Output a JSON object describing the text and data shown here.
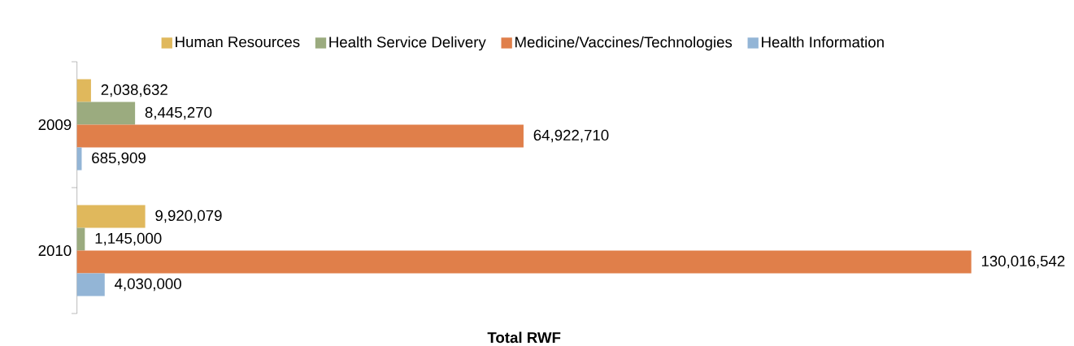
{
  "chart_data": {
    "type": "bar",
    "orientation": "horizontal",
    "xlabel": "Total RWF",
    "categories": [
      "2009",
      "2010"
    ],
    "series": [
      {
        "name": "Human Resources",
        "color": "#e0b85c",
        "values": [
          2038632,
          9920079
        ],
        "value_labels": [
          "2,038,632",
          "9,920,079"
        ]
      },
      {
        "name": "Health Service Delivery",
        "color": "#9bab7f",
        "values": [
          8445270,
          1145000
        ],
        "value_labels": [
          "8,445,270",
          "1,145,000"
        ]
      },
      {
        "name": "Medicine/Vaccines/Technologies",
        "color": "#e07f4a",
        "values": [
          64922710,
          130016542
        ],
        "value_labels": [
          "64,922,710",
          "130,016,542"
        ]
      },
      {
        "name": "Health Information",
        "color": "#93b5d6",
        "values": [
          685909,
          4030000
        ],
        "value_labels": [
          "685,909",
          "4,030,000"
        ]
      }
    ],
    "legend": "top"
  }
}
